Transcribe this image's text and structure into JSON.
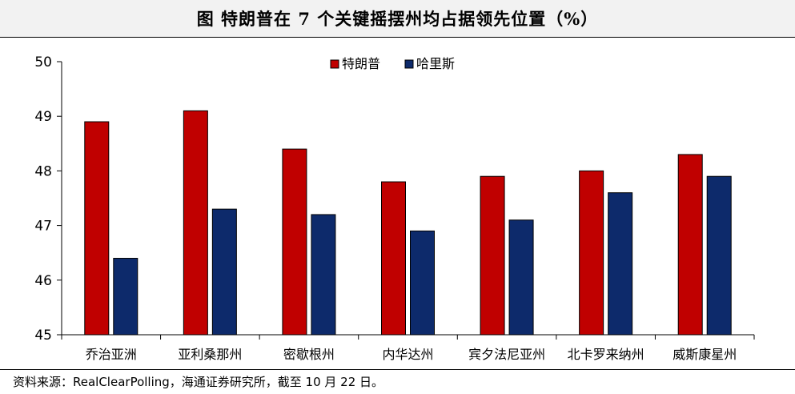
{
  "title": "图 特朗普在 7 个关键摇摆州均占据领先位置（%）",
  "source": "资料来源：RealClearPolling，海通证券研究所，截至 10 月 22 日。",
  "chart_data": {
    "type": "bar",
    "title": "图 特朗普在 7 个关键摇摆州均占据领先位置（%）",
    "xlabel": "",
    "ylabel": "",
    "ylim": [
      45,
      50
    ],
    "yticks": [
      45,
      46,
      47,
      48,
      49,
      50
    ],
    "grid": false,
    "legend_position": "top-center",
    "categories": [
      "乔治亚洲",
      "亚利桑那州",
      "密歇根州",
      "内华达州",
      "宾夕法尼亚州",
      "北卡罗来纳州",
      "威斯康星州"
    ],
    "series": [
      {
        "name": "特朗普",
        "color": "#c00000",
        "values": [
          48.9,
          49.1,
          48.4,
          47.8,
          47.9,
          48.0,
          48.3
        ]
      },
      {
        "name": "哈里斯",
        "color": "#0d2a6b",
        "values": [
          46.4,
          47.3,
          47.2,
          46.9,
          47.1,
          47.6,
          47.9
        ]
      }
    ]
  }
}
